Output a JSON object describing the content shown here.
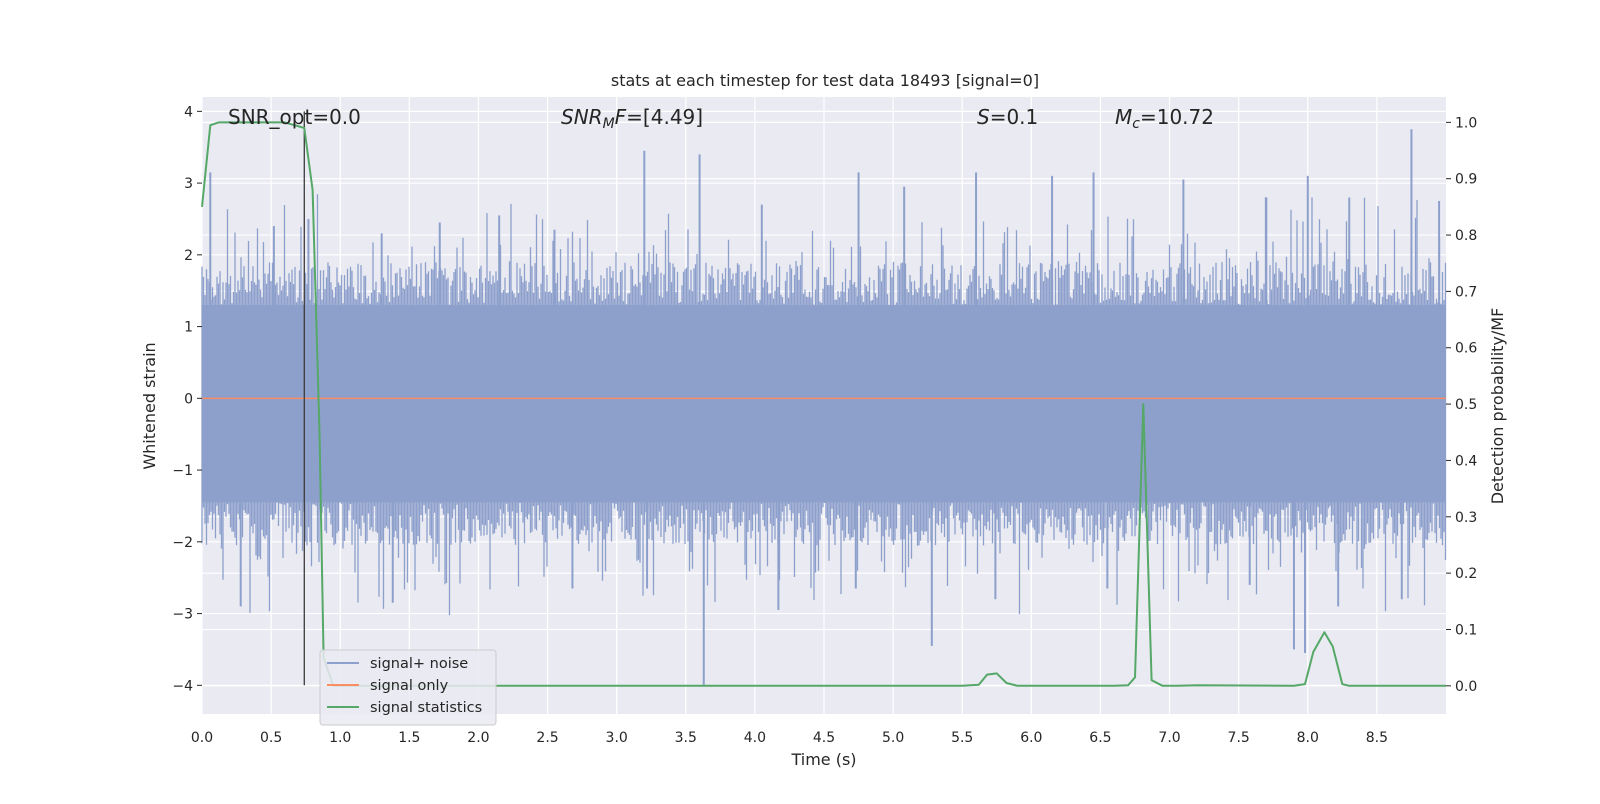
{
  "chart_data": {
    "type": "line",
    "title": "stats at each timestep for test data 18493 [signal=0]",
    "xlabel": "Time (s)",
    "ylabel_left": "Whitened strain",
    "ylabel_right": "Detection probability/MF",
    "xlim": [
      0.0,
      9.0
    ],
    "ylim_left": [
      -4.4,
      4.2
    ],
    "ylim_right": [
      -0.05,
      1.045
    ],
    "x_ticks": [
      0.0,
      0.5,
      1.0,
      1.5,
      2.0,
      2.5,
      3.0,
      3.5,
      4.0,
      4.5,
      5.0,
      5.5,
      6.0,
      6.5,
      7.0,
      7.5,
      8.0,
      8.5
    ],
    "x_tick_labels": [
      "0.0",
      "0.5",
      "1.0",
      "1.5",
      "2.0",
      "2.5",
      "3.0",
      "3.5",
      "4.0",
      "4.5",
      "5.0",
      "5.5",
      "6.0",
      "6.5",
      "7.0",
      "7.5",
      "8.0",
      "8.5"
    ],
    "y_left_ticks": [
      -4,
      -3,
      -2,
      -1,
      0,
      1,
      2,
      3,
      4
    ],
    "y_left_tick_labels": [
      "−4",
      "−3",
      "−2",
      "−1",
      "0",
      "1",
      "2",
      "3",
      "4"
    ],
    "y_right_ticks": [
      0.0,
      0.1,
      0.2,
      0.3,
      0.4,
      0.5,
      0.6,
      0.7,
      0.8,
      0.9,
      1.0
    ],
    "y_right_tick_labels": [
      "0.0",
      "0.1",
      "0.2",
      "0.3",
      "0.4",
      "0.5",
      "0.6",
      "0.7",
      "0.8",
      "0.9",
      "1.0"
    ],
    "grid": true,
    "legend_position": "lower-left",
    "annotations": {
      "snr_opt": "SNR_opt=0.0",
      "snr_mf_prefix": "SNR",
      "snr_mf_sub": "M",
      "snr_mf_suffix": "F=[4.49]",
      "s_var": "S",
      "s_value": "=0.1",
      "mc_var": "M",
      "mc_sub": "c",
      "mc_value": "=10.72"
    },
    "marker_line": {
      "x": 0.74,
      "y_left": [
        -4.0,
        4.0
      ]
    },
    "series": [
      {
        "name": "signal+ noise",
        "axis": "left",
        "color": "#8da0cb",
        "representation": "dense whitened-noise envelope",
        "core_band": [
          -1.6,
          1.45
        ],
        "peak_highs": [
          [
            0.06,
            3.15
          ],
          [
            0.52,
            2.4
          ],
          [
            0.77,
            2.5
          ],
          [
            1.3,
            2.3
          ],
          [
            1.72,
            2.45
          ],
          [
            2.15,
            2.55
          ],
          [
            2.55,
            2.35
          ],
          [
            3.2,
            3.45
          ],
          [
            3.6,
            3.4
          ],
          [
            4.05,
            2.7
          ],
          [
            4.75,
            3.15
          ],
          [
            5.08,
            2.95
          ],
          [
            5.6,
            3.15
          ],
          [
            6.15,
            3.1
          ],
          [
            6.45,
            3.15
          ],
          [
            7.1,
            3.05
          ],
          [
            7.7,
            2.8
          ],
          [
            8.0,
            3.1
          ],
          [
            8.3,
            2.8
          ],
          [
            8.75,
            3.75
          ],
          [
            8.95,
            2.75
          ]
        ],
        "peak_lows": [
          [
            0.28,
            -2.9
          ],
          [
            1.38,
            -2.85
          ],
          [
            2.68,
            -2.65
          ],
          [
            3.22,
            -2.65
          ],
          [
            3.63,
            -4.0
          ],
          [
            4.17,
            -2.95
          ],
          [
            4.73,
            -2.65
          ],
          [
            5.28,
            -3.45
          ],
          [
            5.74,
            -2.8
          ],
          [
            6.55,
            -2.65
          ],
          [
            7.58,
            -2.6
          ],
          [
            7.9,
            -3.5
          ],
          [
            7.98,
            -3.55
          ],
          [
            8.22,
            -2.9
          ],
          [
            8.68,
            -2.8
          ]
        ]
      },
      {
        "name": "signal only",
        "axis": "left",
        "color": "#fc8d62",
        "x": [
          0.0,
          9.0
        ],
        "y": [
          0.0,
          0.0
        ]
      },
      {
        "name": "signal statistics",
        "axis": "right",
        "color": "#55a868",
        "x": [
          0.0,
          0.06,
          0.12,
          0.2,
          0.35,
          0.5,
          0.6,
          0.74,
          0.8,
          0.85,
          0.88,
          0.95,
          1.5,
          2.5,
          3.5,
          4.5,
          5.5,
          5.62,
          5.68,
          5.75,
          5.82,
          5.9,
          6.0,
          6.6,
          6.7,
          6.75,
          6.81,
          6.87,
          6.95,
          7.05,
          7.2,
          7.9,
          7.98,
          8.04,
          8.12,
          8.18,
          8.25,
          8.3,
          8.5,
          9.0
        ],
        "y": [
          0.85,
          0.995,
          1.0,
          1.0,
          1.0,
          1.0,
          1.0,
          0.99,
          0.88,
          0.45,
          0.05,
          0.0,
          0.0,
          0.0,
          0.0,
          0.0,
          0.0,
          0.002,
          0.02,
          0.022,
          0.005,
          0.0,
          0.0,
          0.0,
          0.001,
          0.015,
          0.5,
          0.01,
          0.0,
          0.0,
          0.001,
          0.0,
          0.003,
          0.06,
          0.095,
          0.07,
          0.003,
          0.0,
          0.0,
          0.0
        ]
      }
    ]
  }
}
